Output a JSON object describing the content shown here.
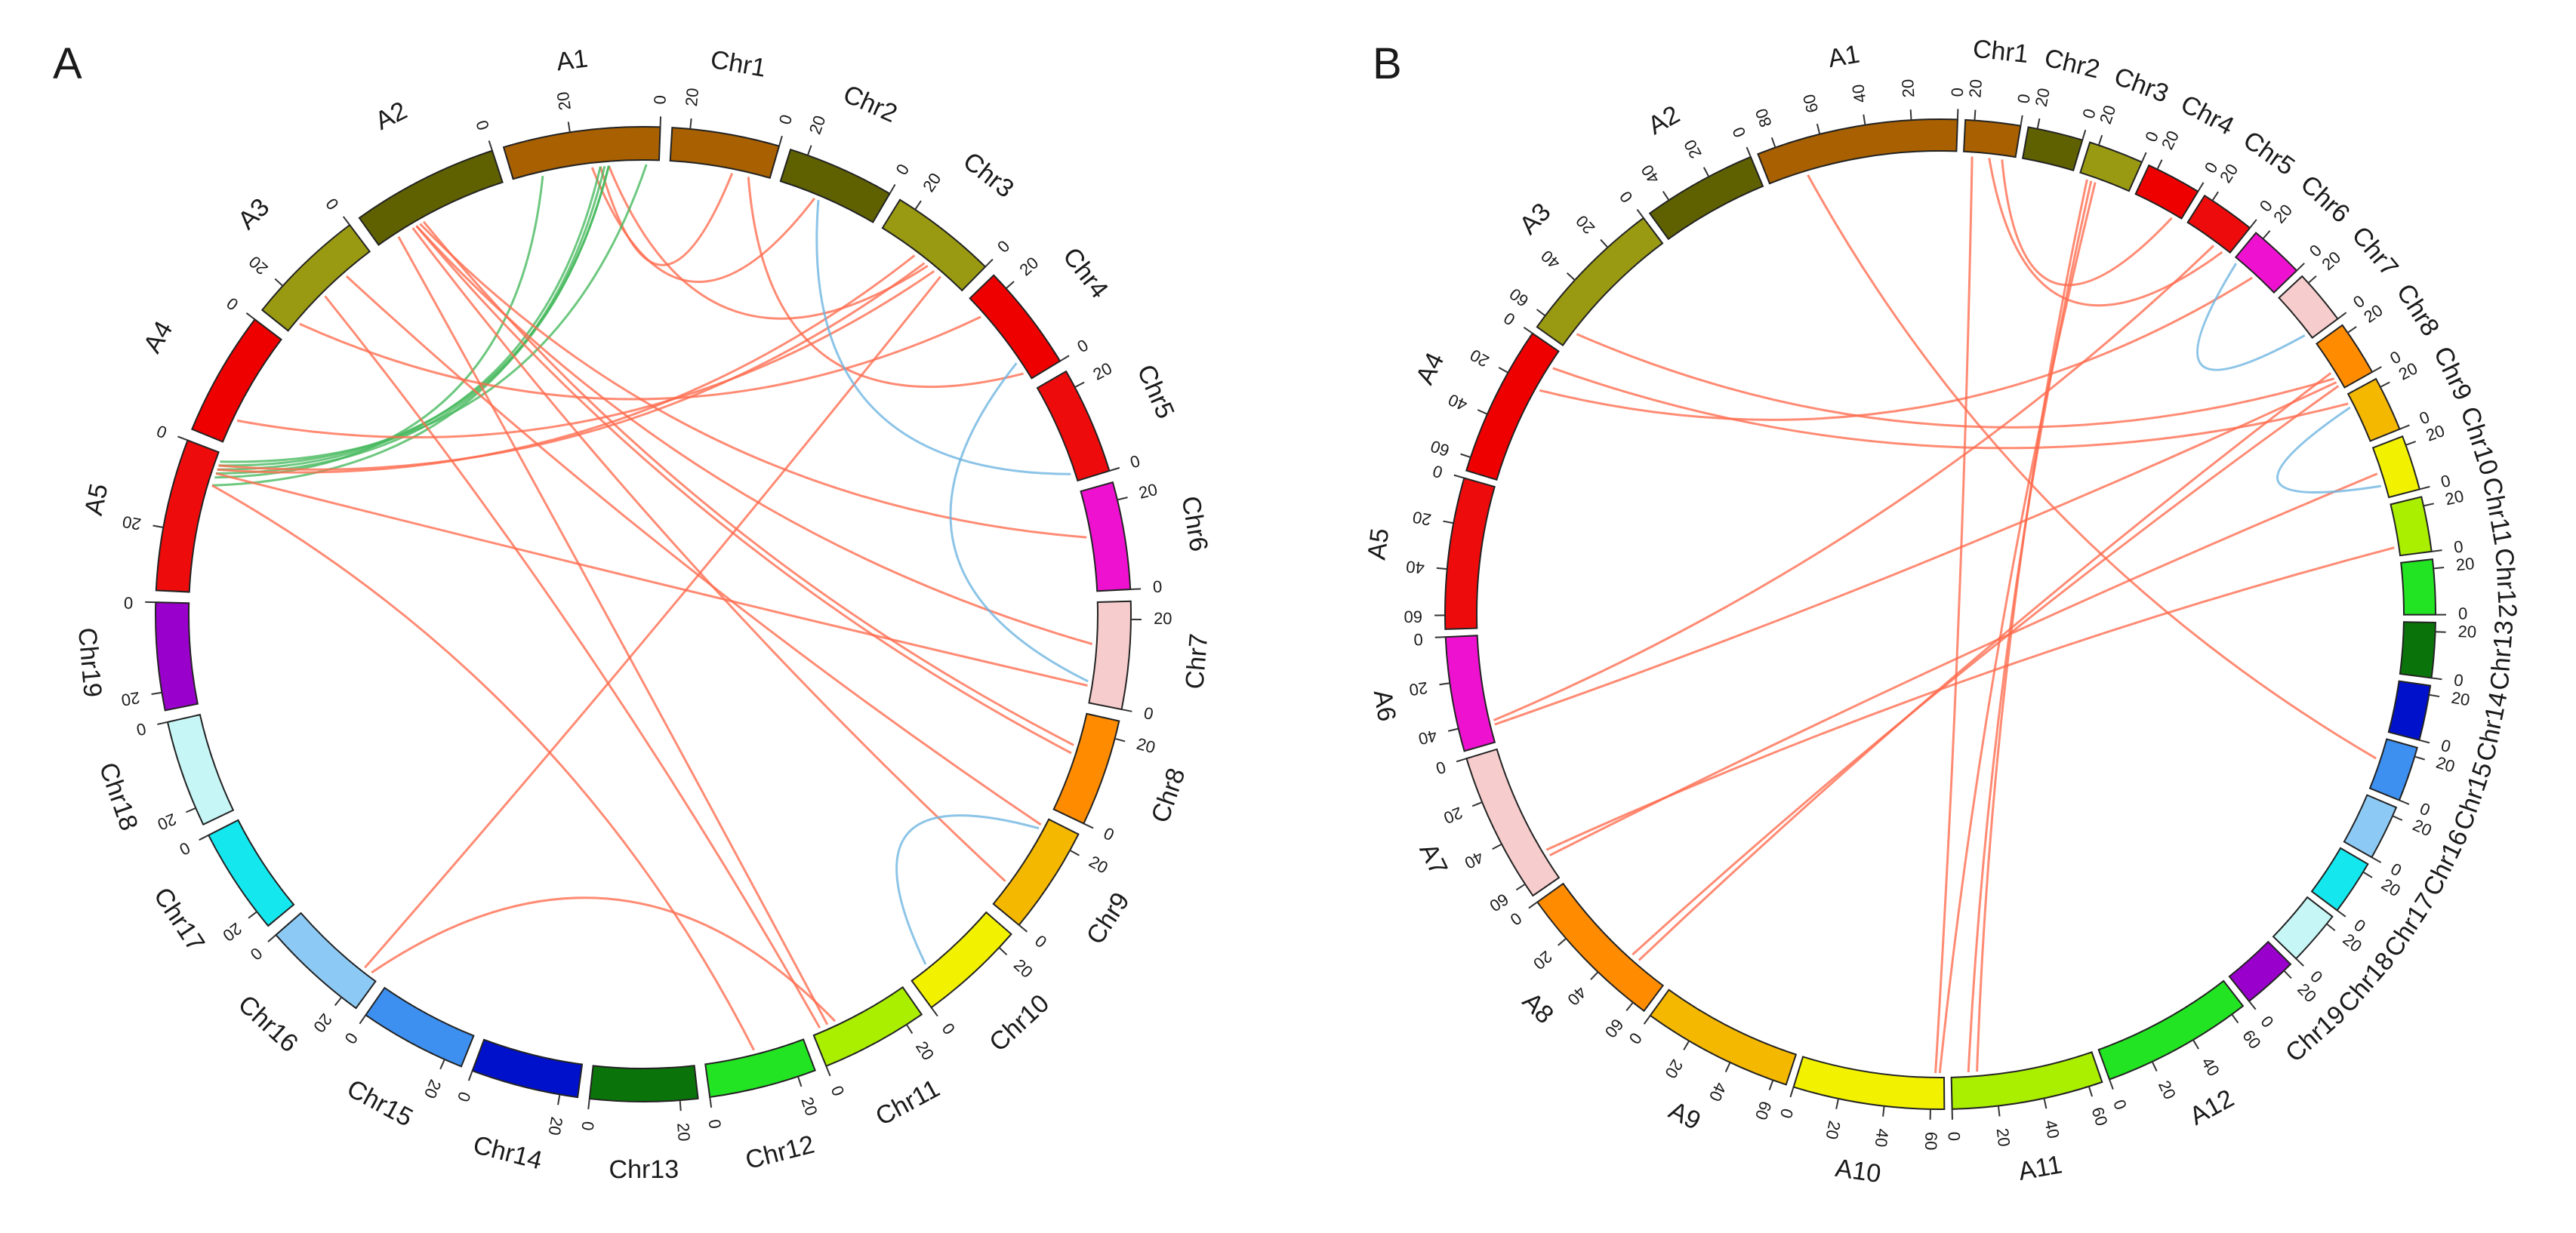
{
  "palette": {
    "A1": "#a86000",
    "A2": "#5f6100",
    "A3": "#999a12",
    "A4": "#ee0000",
    "A5": "#ee0b0b",
    "A6": "#ee11d0",
    "A7": "#f6cccc",
    "A8": "#ff8c00",
    "A9": "#f5b800",
    "A10": "#f2f200",
    "A11": "#aaee00",
    "A12": "#22e422",
    "Chr1": "#a86000",
    "Chr2": "#5f6100",
    "Chr3": "#999a12",
    "Chr4": "#ee0000",
    "Chr5": "#ee0b0b",
    "Chr6": "#ee11d0",
    "Chr7": "#f6cccc",
    "Chr8": "#ff8c00",
    "Chr9": "#f5b800",
    "Chr10": "#f2f200",
    "Chr11": "#aaee00",
    "Chr12": "#22e422",
    "Chr13": "#0a740a",
    "Chr14": "#0011cc",
    "Chr15": "#3d8ff0",
    "Chr16": "#8ccaf5",
    "Chr17": "#14e8ee",
    "Chr18": "#c6f6f6",
    "Chr19": "#9a00cc",
    "red_link": "#ff6a4d",
    "green_link": "#45b85c",
    "blue_link": "#6bb3e0"
  },
  "chart_data": [
    {
      "type": "circos",
      "panel": "A",
      "segments": [
        {
          "name": "A1",
          "length": 35,
          "ticks": [
            0,
            20
          ]
        },
        {
          "name": "A2",
          "length": 33,
          "ticks": [
            0
          ]
        },
        {
          "name": "A3",
          "length": 27,
          "ticks": [
            0,
            20
          ]
        },
        {
          "name": "A4",
          "length": 28,
          "ticks": [
            0
          ]
        },
        {
          "name": "A5",
          "length": 34,
          "ticks": [
            0,
            20
          ]
        },
        {
          "name": "Chr19",
          "length": 24,
          "ticks": [
            0,
            20
          ]
        },
        {
          "name": "Chr18",
          "length": 24,
          "ticks": [
            0,
            20
          ]
        },
        {
          "name": "Chr17",
          "length": 24,
          "ticks": [
            0,
            20
          ]
        },
        {
          "name": "Chr16",
          "length": 24,
          "ticks": [
            0,
            20
          ]
        },
        {
          "name": "Chr15",
          "length": 24,
          "ticks": [
            0,
            20
          ]
        },
        {
          "name": "Chr14",
          "length": 24,
          "ticks": [
            0,
            20
          ]
        },
        {
          "name": "Chr13",
          "length": 24,
          "ticks": [
            0,
            20
          ]
        },
        {
          "name": "Chr12",
          "length": 24,
          "ticks": [
            0,
            20
          ]
        },
        {
          "name": "Chr11",
          "length": 24,
          "ticks": [
            0,
            20
          ]
        },
        {
          "name": "Chr10",
          "length": 24,
          "ticks": [
            0,
            20
          ]
        },
        {
          "name": "Chr9",
          "length": 24,
          "ticks": [
            0,
            20
          ]
        },
        {
          "name": "Chr8",
          "length": 24,
          "ticks": [
            0,
            20
          ]
        },
        {
          "name": "Chr7",
          "length": 24,
          "ticks": [
            0,
            20
          ]
        },
        {
          "name": "Chr6",
          "length": 24,
          "ticks": [
            0,
            20
          ]
        },
        {
          "name": "Chr5",
          "length": 24,
          "ticks": [
            0,
            20
          ]
        },
        {
          "name": "Chr4",
          "length": 24,
          "ticks": [
            0,
            20
          ]
        },
        {
          "name": "Chr3",
          "length": 24,
          "ticks": [
            0,
            20
          ]
        },
        {
          "name": "Chr2",
          "length": 24,
          "ticks": [
            0,
            20
          ]
        },
        {
          "name": "Chr1",
          "length": 24,
          "ticks": [
            0,
            20
          ]
        }
      ],
      "links": [
        {
          "from": [
            "A1",
            14
          ],
          "to": [
            "Chr1",
            9
          ],
          "color": "red_link"
        },
        {
          "from": [
            "A1",
            16
          ],
          "to": [
            "Chr2",
            15
          ],
          "color": "red_link"
        },
        {
          "from": [
            "A1",
            12
          ],
          "to": [
            "Chr3",
            10
          ],
          "color": "red_link"
        },
        {
          "from": [
            "A1",
            3
          ],
          "to": [
            "A5",
            2
          ],
          "color": "green_link"
        },
        {
          "from": [
            "A1",
            14
          ],
          "to": [
            "A5",
            4
          ],
          "color": "green_link"
        },
        {
          "from": [
            "A1",
            12
          ],
          "to": [
            "A5",
            5
          ],
          "color": "green_link"
        },
        {
          "from": [
            "A1",
            13
          ],
          "to": [
            "A5",
            8
          ],
          "color": "green_link"
        },
        {
          "from": [
            "A1",
            12
          ],
          "to": [
            "A5",
            3
          ],
          "color": "green_link"
        },
        {
          "from": [
            "A1",
            28
          ],
          "to": [
            "A5",
            6
          ],
          "color": "green_link"
        },
        {
          "from": [
            "A2",
            21
          ],
          "to": [
            "Chr8",
            16
          ],
          "color": "red_link"
        },
        {
          "from": [
            "A2",
            22
          ],
          "to": [
            "Chr6",
            13
          ],
          "color": "red_link"
        },
        {
          "from": [
            "A2",
            23
          ],
          "to": [
            "Chr8",
            14
          ],
          "color": "red_link"
        },
        {
          "from": [
            "A2",
            24
          ],
          "to": [
            "Chr9",
            6
          ],
          "color": "red_link"
        },
        {
          "from": [
            "A2",
            28
          ],
          "to": [
            "Chr11",
            4
          ],
          "color": "red_link"
        },
        {
          "from": [
            "A2",
            23
          ],
          "to": [
            "Chr7",
            14
          ],
          "color": "red_link"
        },
        {
          "from": [
            "A3",
            8
          ],
          "to": [
            "Chr9",
            22
          ],
          "color": "red_link"
        },
        {
          "from": [
            "A3",
            15
          ],
          "to": [
            "Chr11",
            2
          ],
          "color": "red_link"
        },
        {
          "from": [
            "A3",
            24
          ],
          "to": [
            "Chr4",
            19
          ],
          "color": "red_link"
        },
        {
          "from": [
            "A4",
            22
          ],
          "to": [
            "Chr3",
            8
          ],
          "color": "red_link"
        },
        {
          "from": [
            "A5",
            3
          ],
          "to": [
            "Chr3",
            11
          ],
          "color": "red_link"
        },
        {
          "from": [
            "A5",
            4
          ],
          "to": [
            "Chr3",
            14
          ],
          "color": "red_link"
        },
        {
          "from": [
            "A5",
            5
          ],
          "to": [
            "Chr7",
            4
          ],
          "color": "red_link"
        },
        {
          "from": [
            "A5",
            8
          ],
          "to": [
            "Chr12",
            12
          ],
          "color": "red_link"
        },
        {
          "from": [
            "Chr1",
            5
          ],
          "to": [
            "Chr4",
            2
          ],
          "color": "red_link"
        },
        {
          "from": [
            "Chr3",
            6
          ],
          "to": [
            "Chr16",
            20
          ],
          "color": "red_link"
        },
        {
          "from": [
            "Chr16",
            22
          ],
          "to": [
            "Chr11",
            6
          ],
          "color": "red_link"
        },
        {
          "from": [
            "Chr9",
            21
          ],
          "to": [
            "Chr10",
            5
          ],
          "color": "blue_link"
        },
        {
          "from": [
            "Chr4",
            5
          ],
          "to": [
            "Chr7",
            5
          ],
          "color": "blue_link"
        },
        {
          "from": [
            "Chr5",
            2
          ],
          "to": [
            "Chr2",
            14
          ],
          "color": "blue_link"
        }
      ]
    },
    {
      "type": "circos",
      "panel": "B",
      "segments": [
        {
          "name": "A1",
          "length": 88,
          "ticks": [
            0,
            20,
            40,
            60,
            80
          ]
        },
        {
          "name": "A2",
          "length": 50,
          "ticks": [
            0,
            20,
            40
          ]
        },
        {
          "name": "A3",
          "length": 66,
          "ticks": [
            0,
            20,
            40,
            60
          ]
        },
        {
          "name": "A4",
          "length": 66,
          "ticks": [
            0,
            20,
            40,
            60
          ]
        },
        {
          "name": "A5",
          "length": 66,
          "ticks": [
            0,
            20,
            40,
            60
          ]
        },
        {
          "name": "A6",
          "length": 50,
          "ticks": [
            0,
            20,
            40
          ]
        },
        {
          "name": "A7",
          "length": 66,
          "ticks": [
            0,
            20,
            40,
            60
          ]
        },
        {
          "name": "A8",
          "length": 66,
          "ticks": [
            0,
            20,
            40,
            60
          ]
        },
        {
          "name": "A9",
          "length": 66,
          "ticks": [
            0,
            20,
            40,
            60
          ]
        },
        {
          "name": "A10",
          "length": 66,
          "ticks": [
            0,
            20,
            40,
            60
          ]
        },
        {
          "name": "A11",
          "length": 66,
          "ticks": [
            0,
            20,
            40,
            60
          ]
        },
        {
          "name": "A12",
          "length": 66,
          "ticks": [
            0,
            20,
            40,
            60
          ]
        },
        {
          "name": "Chr19",
          "length": 24,
          "ticks": [
            0,
            20
          ]
        },
        {
          "name": "Chr18",
          "length": 24,
          "ticks": [
            0,
            20
          ]
        },
        {
          "name": "Chr17",
          "length": 24,
          "ticks": [
            0,
            20
          ]
        },
        {
          "name": "Chr16",
          "length": 24,
          "ticks": [
            0,
            20
          ]
        },
        {
          "name": "Chr15",
          "length": 24,
          "ticks": [
            0,
            20
          ]
        },
        {
          "name": "Chr14",
          "length": 24,
          "ticks": [
            0,
            20
          ]
        },
        {
          "name": "Chr13",
          "length": 24,
          "ticks": [
            0,
            20
          ]
        },
        {
          "name": "Chr12",
          "length": 24,
          "ticks": [
            0,
            20
          ]
        },
        {
          "name": "Chr11",
          "length": 24,
          "ticks": [
            0,
            20
          ]
        },
        {
          "name": "Chr10",
          "length": 24,
          "ticks": [
            0,
            20
          ]
        },
        {
          "name": "Chr9",
          "length": 24,
          "ticks": [
            0,
            20
          ]
        },
        {
          "name": "Chr8",
          "length": 24,
          "ticks": [
            0,
            20
          ]
        },
        {
          "name": "Chr7",
          "length": 24,
          "ticks": [
            0,
            20
          ]
        },
        {
          "name": "Chr6",
          "length": 24,
          "ticks": [
            0,
            20
          ]
        },
        {
          "name": "Chr5",
          "length": 24,
          "ticks": [
            0,
            20
          ]
        },
        {
          "name": "Chr4",
          "length": 24,
          "ticks": [
            0,
            20
          ]
        },
        {
          "name": "Chr3",
          "length": 24,
          "ticks": [
            0,
            20
          ]
        },
        {
          "name": "Chr2",
          "length": 24,
          "ticks": [
            0,
            20
          ]
        },
        {
          "name": "Chr1",
          "length": 24,
          "ticks": [
            0,
            20
          ]
        }
      ],
      "links": [
        {
          "from": [
            "A1",
            70
          ],
          "to": [
            "Chr15",
            14
          ],
          "color": "red_link"
        },
        {
          "from": [
            "A3",
            58
          ],
          "to": [
            "Chr8",
            6
          ],
          "color": "red_link"
        },
        {
          "from": [
            "A4",
            20
          ],
          "to": [
            "Chr6",
            12
          ],
          "color": "red_link"
        },
        {
          "from": [
            "A4",
            8
          ],
          "to": [
            "Chr9",
            20
          ],
          "color": "red_link"
        },
        {
          "from": [
            "A6",
            40
          ],
          "to": [
            "Chr5",
            8
          ],
          "color": "red_link"
        },
        {
          "from": [
            "A6",
            42
          ],
          "to": [
            "Chr8",
            4
          ],
          "color": "red_link"
        },
        {
          "from": [
            "A7",
            52
          ],
          "to": [
            "Chr11",
            4
          ],
          "color": "red_link"
        },
        {
          "from": [
            "A7",
            55
          ],
          "to": [
            "Chr10",
            12
          ],
          "color": "red_link"
        },
        {
          "from": [
            "A8",
            46
          ],
          "to": [
            "Chr8",
            2
          ],
          "color": "red_link"
        },
        {
          "from": [
            "A8",
            50
          ],
          "to": [
            "Chr8",
            9
          ],
          "color": "red_link"
        },
        {
          "from": [
            "A10",
            62
          ],
          "to": [
            "Chr1",
            20
          ],
          "color": "red_link"
        },
        {
          "from": [
            "A10",
            64
          ],
          "to": [
            "Chr3",
            16
          ],
          "color": "red_link"
        },
        {
          "from": [
            "A11",
            8
          ],
          "to": [
            "Chr3",
            18
          ],
          "color": "red_link"
        },
        {
          "from": [
            "A11",
            12
          ],
          "to": [
            "Chr3",
            20
          ],
          "color": "red_link"
        },
        {
          "from": [
            "Chr1",
            6
          ],
          "to": [
            "Chr4",
            4
          ],
          "color": "red_link"
        },
        {
          "from": [
            "Chr1",
            12
          ],
          "to": [
            "Chr5",
            3
          ],
          "color": "red_link"
        },
        {
          "from": [
            "Chr6",
            22
          ],
          "to": [
            "Chr7",
            3
          ],
          "color": "blue_link"
        },
        {
          "from": [
            "Chr9",
            18
          ],
          "to": [
            "Chr10",
            6
          ],
          "color": "blue_link"
        }
      ]
    }
  ]
}
